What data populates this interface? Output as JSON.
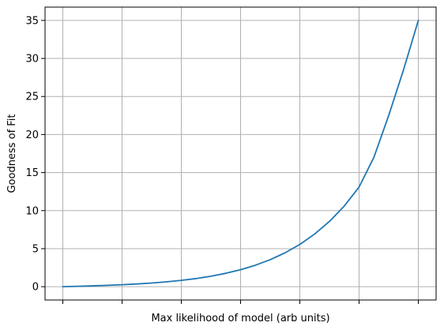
{
  "chart_data": {
    "type": "line",
    "title": "",
    "xlabel": "Max likelihood of model (arb units)",
    "ylabel": "Goodness of Fit",
    "x_tick_labels_visible": false,
    "x_ticks": [
      0,
      1,
      2,
      3,
      4,
      5,
      6
    ],
    "xlim": [
      -0.3,
      6.3
    ],
    "ylim": [
      -1.75,
      36.75
    ],
    "yticks": [
      0,
      5,
      10,
      15,
      20,
      25,
      30,
      35
    ],
    "grid": true,
    "legend": "none",
    "series": [
      {
        "x": [
          0,
          0.25,
          0.5,
          0.75,
          1,
          1.25,
          1.5,
          1.75,
          2,
          2.25,
          2.5,
          2.75,
          3,
          3.25,
          3.5,
          3.75,
          4,
          4.25,
          4.5,
          4.75,
          5,
          5.25,
          5.5,
          5.75,
          6
        ],
        "y": [
          0,
          0.05,
          0.11,
          0.18,
          0.26,
          0.36,
          0.48,
          0.64,
          0.83,
          1.07,
          1.38,
          1.76,
          2.23,
          2.82,
          3.55,
          4.45,
          5.55,
          6.92,
          8.58,
          10.6,
          13.1,
          17.0,
          22.5,
          28.5,
          35.0
        ],
        "color": "#1f77b4"
      }
    ]
  }
}
